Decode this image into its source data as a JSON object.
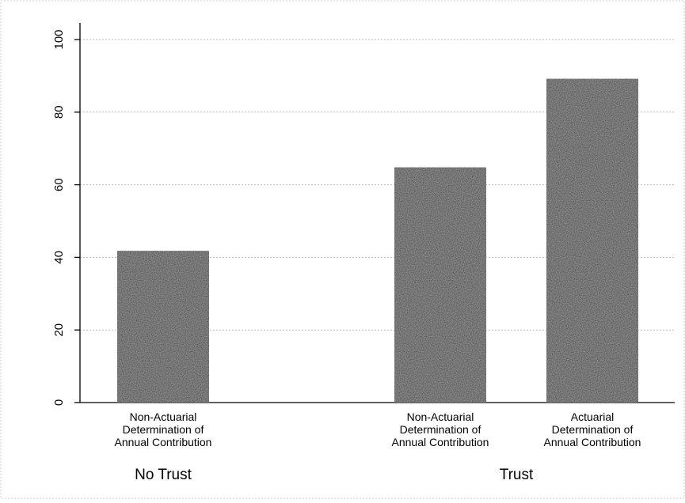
{
  "chart_data": {
    "type": "bar",
    "title": "",
    "xlabel": "",
    "ylabel": "",
    "ylim": [
      0,
      100
    ],
    "yticks": [
      0,
      20,
      40,
      60,
      80,
      100
    ],
    "grid": true,
    "bars": [
      {
        "label_lines": [
          "Non-Actuarial",
          "Determination of",
          "Annual Contribution"
        ],
        "group": "No Trust",
        "value": 41.8
      },
      {
        "label_lines": [
          "Non-Actuarial",
          "Determination of",
          "Annual Contribution"
        ],
        "group": "Trust",
        "value": 64.8
      },
      {
        "label_lines": [
          "Actuarial",
          "Determination of",
          "Annual Contribution"
        ],
        "group": "Trust",
        "value": 89.2
      }
    ],
    "groups": [
      "No Trust",
      "Trust"
    ],
    "bar_color": "#1a1a1a",
    "grid_color": "#bbbbbb"
  }
}
